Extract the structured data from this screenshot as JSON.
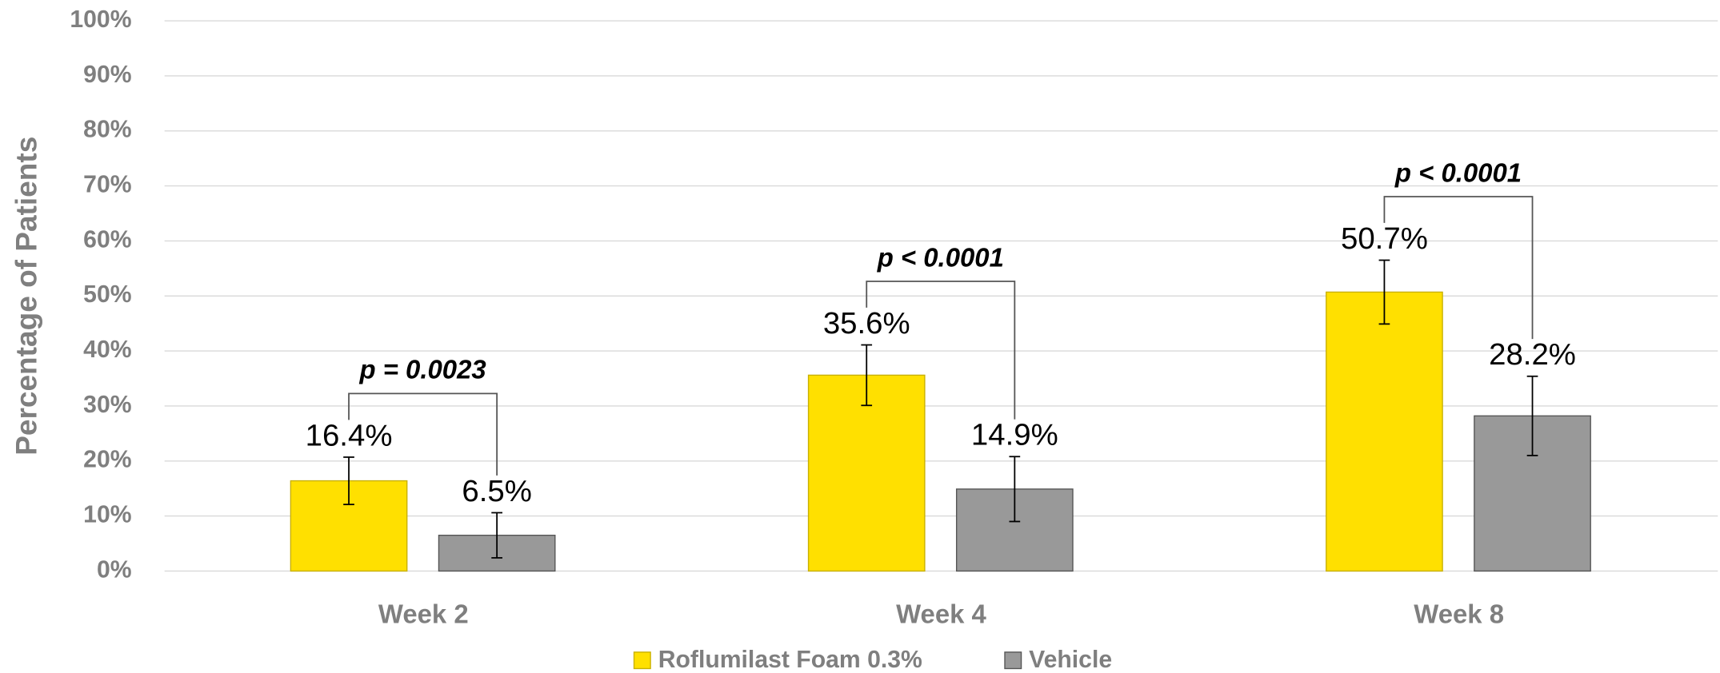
{
  "chart_data": {
    "type": "bar",
    "y_label": "Percentage of Patients",
    "categories": [
      "Week 2",
      "Week 4",
      "Week 8"
    ],
    "series": [
      {
        "name": "Roflumilast Foam 0.3%",
        "color": "#FFE000",
        "values": [
          16.4,
          35.6,
          50.7
        ],
        "value_labels": [
          "16.4%",
          "35.6%",
          "50.7%"
        ],
        "errors": [
          4.3,
          5.5,
          5.8
        ]
      },
      {
        "name": "Vehicle",
        "color": "#999999",
        "values": [
          6.5,
          14.9,
          28.2
        ],
        "value_labels": [
          "6.5%",
          "14.9%",
          "28.2%"
        ],
        "errors": [
          4.1,
          5.9,
          7.2
        ]
      }
    ],
    "annotations": [
      "p = 0.0023",
      "p < 0.0001",
      "p < 0.0001"
    ],
    "ylim": [
      0,
      100
    ],
    "yticks": [
      {
        "value": 0,
        "label": "0%"
      },
      {
        "value": 10,
        "label": "10%"
      },
      {
        "value": 20,
        "label": "20%"
      },
      {
        "value": 30,
        "label": "30%"
      },
      {
        "value": 40,
        "label": "40%"
      },
      {
        "value": 50,
        "label": "50%"
      },
      {
        "value": 60,
        "label": "60%"
      },
      {
        "value": 70,
        "label": "70%"
      },
      {
        "value": 80,
        "label": "80%"
      },
      {
        "value": 90,
        "label": "90%"
      },
      {
        "value": 100,
        "label": "100%"
      }
    ],
    "grid": true,
    "legend": "bottom"
  }
}
